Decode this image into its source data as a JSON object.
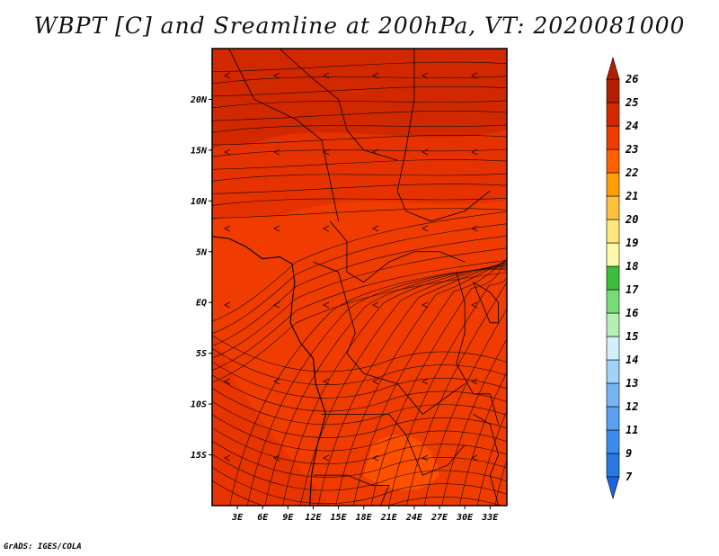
{
  "title": "WBPT [C] and Sreamline at 200hPa, VT: 2020081000",
  "credit": "GrADS: IGES/COLA",
  "chart_data": {
    "type": "heatmap",
    "title": "WBPT [C] and Sreamline at 200hPa, VT: 2020081000",
    "variable": "WBPT [C]",
    "level": "200hPa",
    "valid_time": "2020081000",
    "overlay": "streamlines",
    "xlim": [
      0,
      35
    ],
    "ylim": [
      -20,
      25
    ],
    "x_ticks": [
      {
        "value": 3,
        "label": "3E"
      },
      {
        "value": 6,
        "label": "6E"
      },
      {
        "value": 9,
        "label": "9E"
      },
      {
        "value": 12,
        "label": "12E"
      },
      {
        "value": 15,
        "label": "15E"
      },
      {
        "value": 18,
        "label": "18E"
      },
      {
        "value": 21,
        "label": "21E"
      },
      {
        "value": 24,
        "label": "24E"
      },
      {
        "value": 27,
        "label": "27E"
      },
      {
        "value": 30,
        "label": "30E"
      },
      {
        "value": 33,
        "label": "33E"
      }
    ],
    "y_ticks": [
      {
        "value": 20,
        "label": "20N"
      },
      {
        "value": 15,
        "label": "15N"
      },
      {
        "value": 10,
        "label": "10N"
      },
      {
        "value": 5,
        "label": "5N"
      },
      {
        "value": 0,
        "label": "EQ"
      },
      {
        "value": -5,
        "label": "5S"
      },
      {
        "value": -10,
        "label": "10S"
      },
      {
        "value": -15,
        "label": "15S"
      }
    ],
    "colorbar": {
      "levels": [
        {
          "label": "7",
          "color": "#1e64dc"
        },
        {
          "label": "9",
          "color": "#2878e6"
        },
        {
          "label": "11",
          "color": "#3c8cf0"
        },
        {
          "label": "12",
          "color": "#5aa0f0"
        },
        {
          "label": "13",
          "color": "#78b4f5"
        },
        {
          "label": "14",
          "color": "#a0d2fa"
        },
        {
          "label": "15",
          "color": "#d2f0fa"
        },
        {
          "label": "16",
          "color": "#b4f0b4"
        },
        {
          "label": "17",
          "color": "#78dc78"
        },
        {
          "label": "18",
          "color": "#3cbe3c"
        },
        {
          "label": "19",
          "color": "#fffaaa"
        },
        {
          "label": "20",
          "color": "#ffe678"
        },
        {
          "label": "21",
          "color": "#ffc03c"
        },
        {
          "label": "22",
          "color": "#ffa000"
        },
        {
          "label": "23",
          "color": "#ff6000"
        },
        {
          "label": "24",
          "color": "#f03c00"
        },
        {
          "label": "25",
          "color": "#d22800"
        },
        {
          "label": "26",
          "color": "#b41e00"
        }
      ],
      "extend": "both"
    },
    "field_regions": [
      {
        "region": "north (15N-25N)",
        "value_range": "24-25",
        "color": "#d22800"
      },
      {
        "region": "central band (5N-15N)",
        "value_range": "24",
        "color": "#e63200"
      },
      {
        "region": "central/south Africa",
        "value_range": "23-24",
        "color": "#f03c00"
      },
      {
        "region": "southern interior",
        "value_range": "23",
        "color": "#ff5000"
      }
    ]
  }
}
